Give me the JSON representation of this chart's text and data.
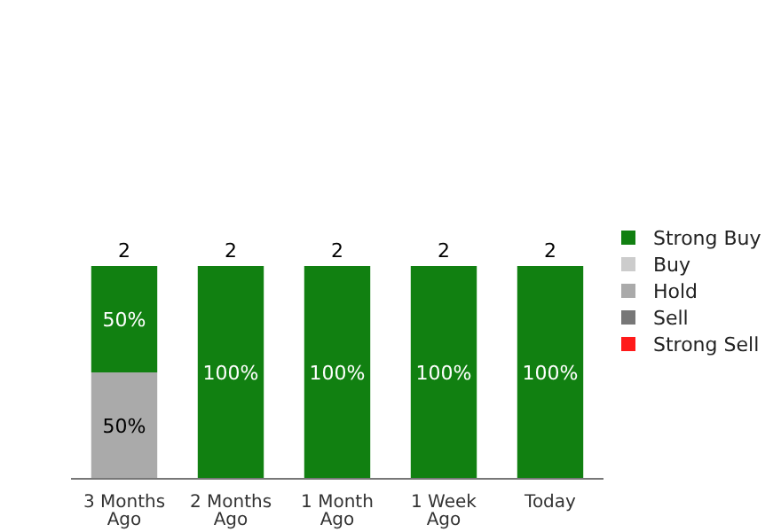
{
  "chart_data": {
    "type": "bar",
    "stacked": true,
    "categories": [
      "3 Months Ago",
      "2 Months Ago",
      "1 Month Ago",
      "1 Week Ago",
      "Today"
    ],
    "series": [
      {
        "name": "Strong Sell",
        "color": "#ff1a1a",
        "values": [
          null,
          null,
          null,
          null,
          null
        ]
      },
      {
        "name": "Sell",
        "color": "#777777",
        "values": [
          null,
          null,
          null,
          null,
          null
        ]
      },
      {
        "name": "Hold",
        "color": "#aaaaaa",
        "values": [
          50,
          null,
          null,
          null,
          null
        ],
        "value_labels": [
          "50%",
          null,
          null,
          null,
          null
        ]
      },
      {
        "name": "Buy",
        "color": "#cccccc",
        "values": [
          null,
          null,
          null,
          null,
          null
        ]
      },
      {
        "name": "Strong Buy",
        "color": "#118011",
        "values": [
          50,
          100,
          100,
          100,
          100
        ],
        "value_labels": [
          "50%",
          "100%",
          "100%",
          "100%",
          "100%"
        ]
      }
    ],
    "annotations": [
      {
        "text": "2",
        "x": "3 Months Ago",
        "y": 100
      },
      {
        "text": "2",
        "x": "2 Months Ago",
        "y": 100
      },
      {
        "text": "2",
        "x": "1 Month Ago",
        "y": 100
      },
      {
        "text": "2",
        "x": "1 Week Ago",
        "y": 100
      },
      {
        "text": "2",
        "x": "Today",
        "y": 100
      }
    ],
    "legend": "right"
  }
}
